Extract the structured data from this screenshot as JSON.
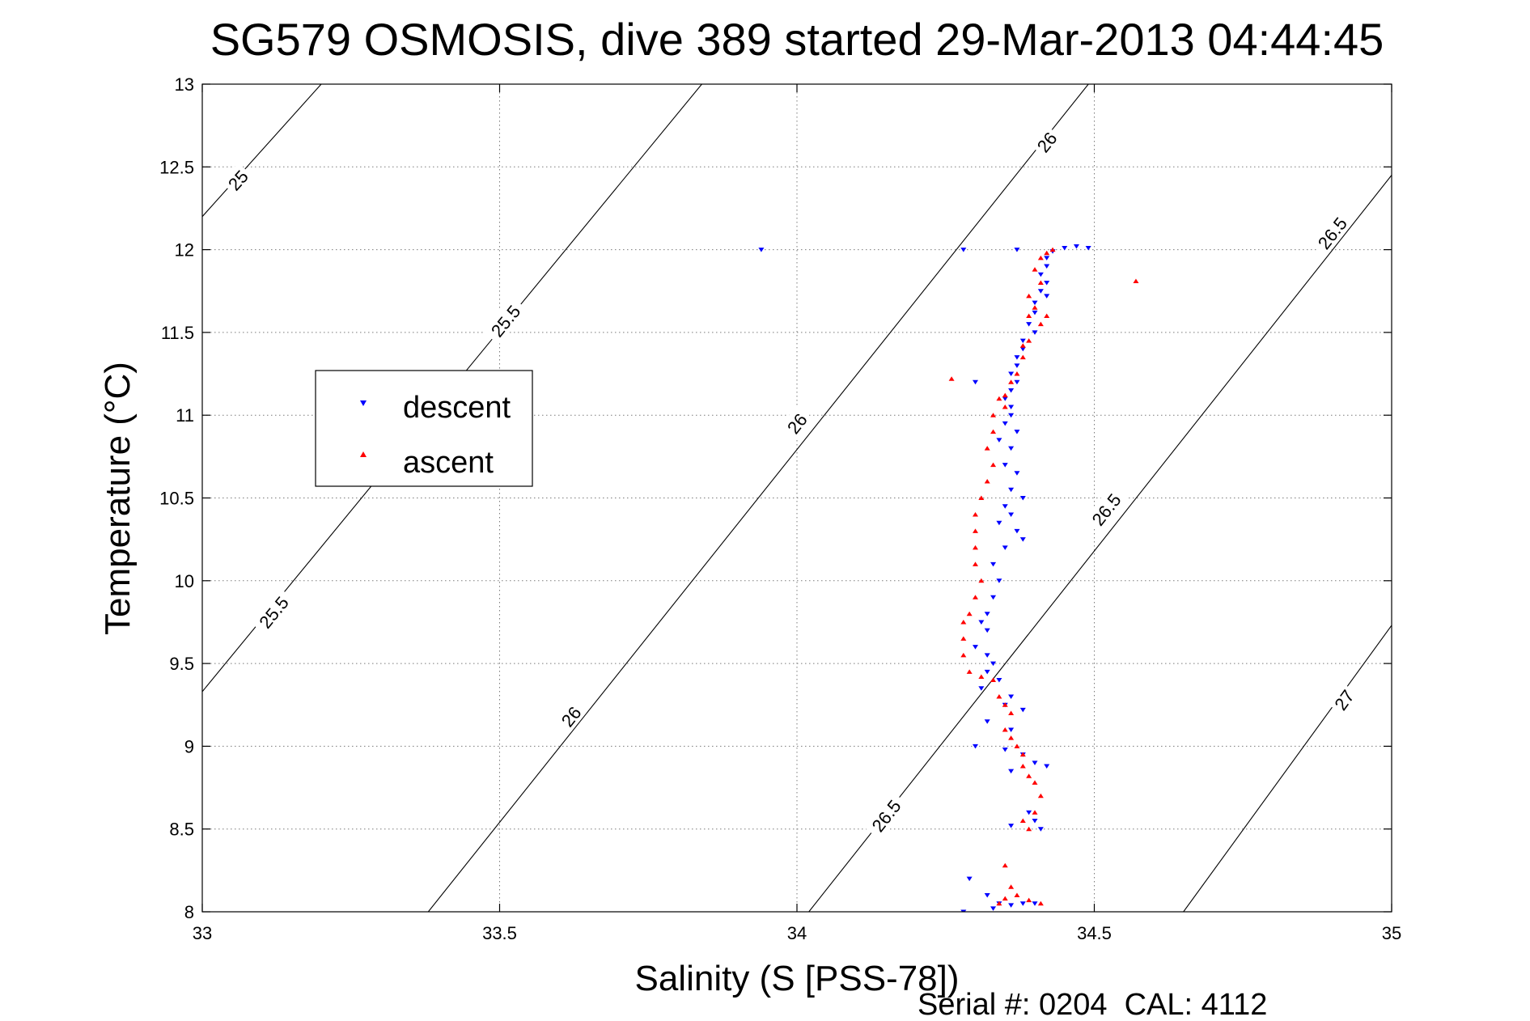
{
  "chart_data": {
    "type": "scatter",
    "title": "SG579 OSMOSIS, dive 389 started 29-Mar-2013 04:44:45",
    "xlabel": "Salinity (S [PSS-78])",
    "ylabel": "Temperature (°C)",
    "xlim": [
      33,
      35
    ],
    "ylim": [
      8,
      13
    ],
    "xticks": [
      "33",
      "33.5",
      "34",
      "34.5",
      "35"
    ],
    "yticks": [
      "8",
      "8.5",
      "9",
      "9.5",
      "10",
      "10.5",
      "11",
      "11.5",
      "12",
      "12.5",
      "13"
    ],
    "grid": true,
    "legend_position": "left-middle",
    "footer": "Serial #: 0204  CAL: 4112",
    "contours": [
      {
        "label": "25",
        "points": [
          [
            33.0,
            12.2
          ],
          [
            33.2,
            13.0
          ]
        ]
      },
      {
        "label": "25.5",
        "points": [
          [
            33.0,
            9.33
          ],
          [
            33.84,
            13.0
          ]
        ]
      },
      {
        "label": "26",
        "points": [
          [
            33.38,
            8.0
          ],
          [
            34.49,
            13.0
          ]
        ]
      },
      {
        "label": "26.5",
        "points": [
          [
            34.02,
            8.0
          ],
          [
            35.0,
            12.45
          ]
        ]
      },
      {
        "label": "27",
        "points": [
          [
            34.65,
            8.0
          ],
          [
            35.0,
            9.73
          ]
        ]
      }
    ],
    "contour_labels": [
      {
        "text": "25",
        "x": 33.06,
        "y": 12.42
      },
      {
        "text": "25.5",
        "x": 33.51,
        "y": 11.57
      },
      {
        "text": "25.5",
        "x": 33.12,
        "y": 9.81
      },
      {
        "text": "26",
        "x": 34.0,
        "y": 10.95
      },
      {
        "text": "26",
        "x": 33.62,
        "y": 9.18
      },
      {
        "text": "26",
        "x": 34.42,
        "y": 12.65
      },
      {
        "text": "26.5",
        "x": 34.52,
        "y": 10.43
      },
      {
        "text": "26.5",
        "x": 34.15,
        "y": 8.58
      },
      {
        "text": "26.5",
        "x": 34.9,
        "y": 12.1
      },
      {
        "text": "27",
        "x": 34.92,
        "y": 9.28
      }
    ],
    "series": [
      {
        "name": "descent",
        "color": "#0000ff",
        "marker": "triangle-down",
        "points": [
          [
            33.94,
            12.0
          ],
          [
            34.28,
            12.0
          ],
          [
            34.37,
            12.0
          ],
          [
            34.47,
            12.02
          ],
          [
            34.45,
            12.01
          ],
          [
            34.49,
            12.01
          ],
          [
            34.43,
            11.99
          ],
          [
            34.42,
            11.95
          ],
          [
            34.42,
            11.9
          ],
          [
            34.41,
            11.85
          ],
          [
            34.42,
            11.8
          ],
          [
            34.41,
            11.75
          ],
          [
            34.42,
            11.72
          ],
          [
            34.4,
            11.68
          ],
          [
            34.4,
            11.62
          ],
          [
            34.39,
            11.55
          ],
          [
            34.4,
            11.5
          ],
          [
            34.38,
            11.45
          ],
          [
            34.38,
            11.4
          ],
          [
            34.37,
            11.35
          ],
          [
            34.37,
            11.3
          ],
          [
            34.36,
            11.25
          ],
          [
            34.37,
            11.2
          ],
          [
            34.36,
            11.15
          ],
          [
            34.35,
            11.1
          ],
          [
            34.36,
            11.05
          ],
          [
            34.36,
            11.0
          ],
          [
            34.35,
            10.95
          ],
          [
            34.37,
            10.9
          ],
          [
            34.34,
            10.85
          ],
          [
            34.36,
            10.8
          ],
          [
            34.35,
            10.7
          ],
          [
            34.37,
            10.65
          ],
          [
            34.36,
            10.55
          ],
          [
            34.38,
            10.5
          ],
          [
            34.35,
            10.45
          ],
          [
            34.36,
            10.4
          ],
          [
            34.34,
            10.35
          ],
          [
            34.37,
            10.3
          ],
          [
            34.35,
            10.2
          ],
          [
            34.33,
            10.1
          ],
          [
            34.34,
            10.0
          ],
          [
            34.33,
            9.9
          ],
          [
            34.32,
            9.8
          ],
          [
            34.31,
            9.75
          ],
          [
            34.32,
            9.7
          ],
          [
            34.3,
            9.6
          ],
          [
            34.32,
            9.55
          ],
          [
            34.33,
            9.5
          ],
          [
            34.32,
            9.45
          ],
          [
            34.34,
            9.4
          ],
          [
            34.31,
            9.35
          ],
          [
            34.36,
            9.3
          ],
          [
            34.35,
            9.25
          ],
          [
            34.38,
            9.22
          ],
          [
            34.32,
            9.15
          ],
          [
            34.36,
            9.1
          ],
          [
            34.3,
            9.0
          ],
          [
            34.35,
            8.98
          ],
          [
            34.38,
            8.95
          ],
          [
            34.4,
            8.9
          ],
          [
            34.42,
            8.88
          ],
          [
            34.36,
            8.85
          ],
          [
            34.39,
            8.6
          ],
          [
            34.4,
            8.55
          ],
          [
            34.41,
            8.5
          ],
          [
            34.36,
            8.52
          ],
          [
            34.29,
            8.2
          ],
          [
            34.32,
            8.1
          ],
          [
            34.34,
            8.05
          ],
          [
            34.36,
            8.04
          ],
          [
            34.38,
            8.05
          ],
          [
            34.4,
            8.05
          ],
          [
            34.33,
            8.02
          ],
          [
            34.28,
            8.0
          ],
          [
            34.3,
            11.2
          ],
          [
            34.38,
            10.25
          ]
        ]
      },
      {
        "name": "ascent",
        "color": "#ff0000",
        "marker": "triangle-up",
        "points": [
          [
            34.43,
            12.0
          ],
          [
            34.42,
            11.98
          ],
          [
            34.41,
            11.95
          ],
          [
            34.4,
            11.88
          ],
          [
            34.41,
            11.8
          ],
          [
            34.39,
            11.72
          ],
          [
            34.4,
            11.65
          ],
          [
            34.42,
            11.6
          ],
          [
            34.39,
            11.6
          ],
          [
            34.41,
            11.55
          ],
          [
            34.39,
            11.45
          ],
          [
            34.38,
            11.42
          ],
          [
            34.38,
            11.35
          ],
          [
            34.37,
            11.25
          ],
          [
            34.36,
            11.2
          ],
          [
            34.35,
            11.12
          ],
          [
            34.34,
            11.1
          ],
          [
            34.35,
            11.05
          ],
          [
            34.33,
            11.0
          ],
          [
            34.33,
            10.9
          ],
          [
            34.32,
            10.8
          ],
          [
            34.33,
            10.7
          ],
          [
            34.32,
            10.6
          ],
          [
            34.31,
            10.5
          ],
          [
            34.3,
            10.4
          ],
          [
            34.3,
            10.3
          ],
          [
            34.3,
            10.2
          ],
          [
            34.3,
            10.1
          ],
          [
            34.31,
            10.0
          ],
          [
            34.3,
            9.9
          ],
          [
            34.29,
            9.8
          ],
          [
            34.28,
            9.75
          ],
          [
            34.28,
            9.65
          ],
          [
            34.28,
            9.55
          ],
          [
            34.29,
            9.45
          ],
          [
            34.31,
            9.42
          ],
          [
            34.33,
            9.4
          ],
          [
            34.34,
            9.3
          ],
          [
            34.35,
            9.25
          ],
          [
            34.36,
            9.2
          ],
          [
            34.35,
            9.1
          ],
          [
            34.36,
            9.05
          ],
          [
            34.37,
            9.0
          ],
          [
            34.38,
            8.95
          ],
          [
            34.38,
            8.88
          ],
          [
            34.39,
            8.82
          ],
          [
            34.4,
            8.78
          ],
          [
            34.41,
            8.7
          ],
          [
            34.4,
            8.6
          ],
          [
            34.38,
            8.55
          ],
          [
            34.39,
            8.5
          ],
          [
            34.35,
            8.28
          ],
          [
            34.36,
            8.15
          ],
          [
            34.37,
            8.1
          ],
          [
            34.35,
            8.08
          ],
          [
            34.34,
            8.05
          ],
          [
            34.39,
            8.07
          ],
          [
            34.41,
            8.05
          ],
          [
            34.57,
            11.81
          ],
          [
            34.26,
            11.22
          ]
        ]
      }
    ]
  }
}
